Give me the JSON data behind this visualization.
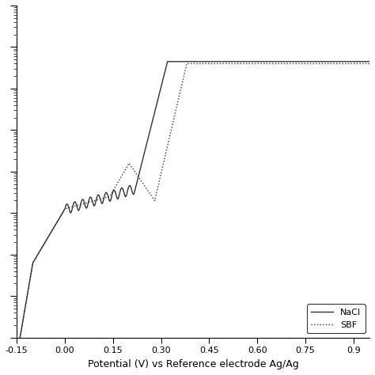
{
  "xlabel": "Potential (V) vs Reference electrode Ag/Ag",
  "xlim": [
    -0.15,
    0.95
  ],
  "ylim_log": [
    1e-09,
    0.01
  ],
  "xticks": [
    -0.15,
    0.0,
    0.15,
    0.3,
    0.45,
    0.6,
    0.75,
    0.9
  ],
  "legend_labels": [
    "NaCl",
    "SBF"
  ],
  "line_color": "#333333",
  "background": "#ffffff"
}
